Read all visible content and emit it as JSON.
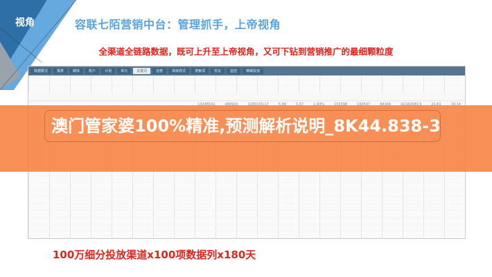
{
  "slide": {
    "corner_label": "视角",
    "title": "容联七陌营销中台：管理抓手，上帝视角",
    "subtitle": "全渠道全链路数据，既可上升至上帝视角，又可下钻到营销推广的最细颗粒度",
    "bottom_caption": "100万细分投放渠道x100项数据列x180天",
    "accent_color": "#5aa3dc",
    "highlight_color": "#e0231c"
  },
  "screenshot": {
    "tabs": [
      {
        "label": "数据概况"
      },
      {
        "label": "报表"
      },
      {
        "label": "媒体"
      },
      {
        "label": "账户"
      },
      {
        "label": "计划"
      },
      {
        "label": "单元"
      },
      {
        "label": "关键词"
      },
      {
        "label": "创意"
      },
      {
        "label": "高级样式"
      },
      {
        "label": "搜索词"
      },
      {
        "label": "优化"
      },
      {
        "label": "监控"
      },
      {
        "label": "精细投放"
      }
    ],
    "active_tab": "关键词",
    "total_row": [
      "13248541",
      "480910",
      "2180159.17",
      "5.99",
      "5.57",
      "1.94%",
      "151598",
      "190547",
      "84164",
      "42182080.9",
      "21.81",
      "18.14"
    ]
  },
  "overlay": {
    "headline": "澳门管家婆100%精准,预测解析说明_8K44.838-3",
    "band_color": "#f78040"
  }
}
